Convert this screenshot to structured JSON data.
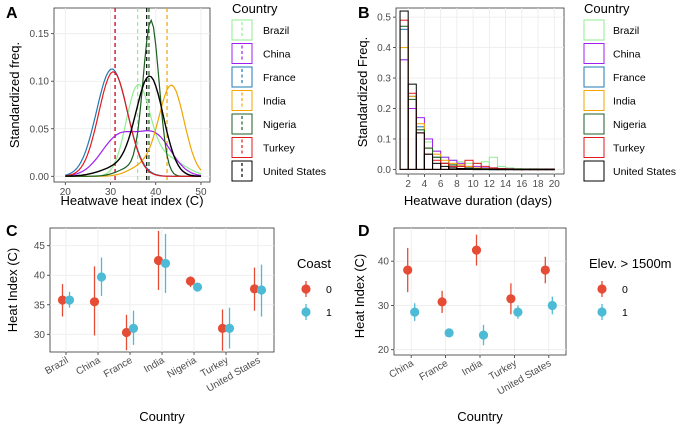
{
  "panel_labels": [
    "A",
    "B",
    "C",
    "D"
  ],
  "colors": {
    "Brazil": "#90ee90",
    "China": "#a020f0",
    "France": "#1f78b4",
    "India": "#f0a500",
    "Nigeria": "#1b5e20",
    "Turkey": "#e31a1c",
    "United States": "#000000",
    "group0": "#e64b35",
    "group1": "#4dbbd5"
  },
  "chart_data": [
    {
      "id": "A",
      "type": "line",
      "title": "",
      "xlabel": "Heatwave heat index (C)",
      "ylabel": "Standardized freq.",
      "xlim": [
        17.5,
        52
      ],
      "ylim": [
        -0.006,
        0.177
      ],
      "xticks": [
        20,
        30,
        40,
        50
      ],
      "yticks": [
        0,
        0.05,
        0.1,
        0.15
      ],
      "ytick_labels": [
        "0.00",
        "0.05",
        "0.10",
        "0.15"
      ],
      "legend_title": "Country",
      "x_grid_start": 20,
      "x_grid_end": 50,
      "x_grid_step": 0.5,
      "series": [
        {
          "name": "Brazil",
          "mean": 36,
          "dashed_line": 36,
          "components": [
            {
              "w": 0.09,
              "mu": 36,
              "sd": 2.6
            },
            {
              "w": 0.02,
              "mu": 42,
              "sd": 4
            }
          ]
        },
        {
          "name": "China",
          "mean": 31,
          "dashed_line": 31,
          "components": [
            {
              "w": 0.042,
              "mu": 32,
              "sd": 4
            },
            {
              "w": 0.04,
              "mu": 40,
              "sd": 3.6
            }
          ]
        },
        {
          "name": "France",
          "mean": 31,
          "dashed_line": 31,
          "components": [
            {
              "w": 0.113,
              "mu": 30.3,
              "sd": 3.4
            }
          ]
        },
        {
          "name": "India",
          "mean": 42.5,
          "dashed_line": 42.5,
          "components": [
            {
              "w": 0.095,
              "mu": 43.5,
              "sd": 2.8
            },
            {
              "w": 0.01,
              "mu": 37,
              "sd": 3
            }
          ]
        },
        {
          "name": "Nigeria",
          "mean": 38.5,
          "dashed_line": 38.5,
          "components": [
            {
              "w": 0.16,
              "mu": 39,
              "sd": 1.75
            },
            {
              "w": 0.01,
              "mu": 35,
              "sd": 3
            }
          ]
        },
        {
          "name": "Turkey",
          "mean": 31,
          "dashed_line": 31,
          "components": [
            {
              "w": 0.11,
              "mu": 30.6,
              "sd": 3.2
            }
          ]
        },
        {
          "name": "United States",
          "mean": 38,
          "dashed_line": 38,
          "components": [
            {
              "w": 0.103,
              "mu": 38.7,
              "sd": 3
            },
            {
              "w": 0.01,
              "mu": 32,
              "sd": 4
            }
          ]
        }
      ]
    },
    {
      "id": "B",
      "type": "bar",
      "title": "",
      "xlabel": "Heatwave duration (days)",
      "ylabel": "Standardized Freq.",
      "xlim": [
        0.5,
        21.2
      ],
      "ylim": [
        -0.015,
        0.53
      ],
      "xticks": [
        2,
        4,
        6,
        8,
        10,
        12,
        14,
        16,
        18,
        20
      ],
      "yticks": [
        0,
        0.1,
        0.2,
        0.3,
        0.4,
        0.5
      ],
      "ytick_labels": [
        "0.0",
        "0.1",
        "0.2",
        "0.3",
        "0.4",
        "0.5"
      ],
      "bin_starts": [
        1,
        2,
        3,
        4,
        5,
        6,
        7,
        8,
        9,
        10,
        11,
        12,
        13,
        14,
        15,
        16,
        17,
        18,
        19
      ],
      "bin_width": 1,
      "legend_title": "Country",
      "series": [
        {
          "name": "Brazil",
          "values": [
            0.36,
            0.2,
            0.13,
            0.09,
            0.06,
            0.04,
            0.03,
            0.025,
            0.02,
            0.02,
            0.025,
            0.04,
            0.01,
            0.005,
            0.003,
            0.002,
            0.002,
            0.001,
            0.001
          ]
        },
        {
          "name": "China",
          "values": [
            0.36,
            0.2,
            0.17,
            0.1,
            0.06,
            0.04,
            0.03,
            0.02,
            0.01,
            0.01,
            0.005,
            0.005,
            0.003,
            0.002,
            0.001,
            0.001,
            0.001,
            0.001,
            0.001
          ]
        },
        {
          "name": "France",
          "values": [
            0.46,
            0.24,
            0.14,
            0.07,
            0.04,
            0.02,
            0.01,
            0.01,
            0.005,
            0.003,
            0.002,
            0.001,
            0.001,
            0.001,
            0.001,
            0.001,
            0.001,
            0.001,
            0.001
          ]
        },
        {
          "name": "India",
          "values": [
            0.4,
            0.24,
            0.15,
            0.07,
            0.05,
            0.03,
            0.02,
            0.015,
            0.01,
            0.005,
            0.003,
            0.002,
            0.001,
            0.001,
            0.001,
            0.001,
            0.001,
            0.001,
            0.001
          ]
        },
        {
          "name": "Nigeria",
          "values": [
            0.47,
            0.23,
            0.13,
            0.07,
            0.04,
            0.02,
            0.015,
            0.01,
            0.005,
            0.003,
            0.002,
            0.001,
            0.001,
            0.001,
            0.001,
            0.001,
            0.001,
            0.001,
            0.001
          ]
        },
        {
          "name": "Turkey",
          "values": [
            0.49,
            0.25,
            0.12,
            0.05,
            0.03,
            0.02,
            0.01,
            0.01,
            0.03,
            0.02,
            0.01,
            0.005,
            0.003,
            0.002,
            0.001,
            0.001,
            0.001,
            0.001,
            0.001
          ]
        },
        {
          "name": "United States",
          "values": [
            0.52,
            0.28,
            0.12,
            0.05,
            0.02,
            0.01,
            0.005,
            0.003,
            0.002,
            0.001,
            0.001,
            0.001,
            0.001,
            0.001,
            0.001,
            0.001,
            0.001,
            0.001,
            0.001
          ]
        }
      ]
    },
    {
      "id": "C",
      "type": "scatter",
      "title": "",
      "xlabel": "Country",
      "ylabel": "Heat Index (C)",
      "ylim": [
        27,
        48
      ],
      "yticks": [
        30,
        35,
        40,
        45
      ],
      "categories": [
        "Brazil",
        "China",
        "France",
        "India",
        "Nigeria",
        "Turkey",
        "United States"
      ],
      "legend_title": "Coast",
      "series": [
        {
          "name": "0",
          "values": [
            35.8,
            35.5,
            30.3,
            42.5,
            39,
            31,
            37.7
          ],
          "lower": [
            33,
            29.8,
            27.3,
            37.5,
            38,
            27.2,
            34
          ],
          "upper": [
            38.5,
            41.5,
            33.3,
            47.5,
            39.8,
            34.2,
            41.3
          ]
        },
        {
          "name": "1",
          "values": [
            35.8,
            39.7,
            31,
            42,
            38,
            31,
            37.5
          ],
          "lower": [
            34.5,
            36.5,
            28.2,
            37,
            37.5,
            27.6,
            33
          ],
          "upper": [
            37.2,
            43,
            34,
            47,
            38.5,
            34.5,
            41.8
          ]
        }
      ]
    },
    {
      "id": "D",
      "type": "scatter",
      "title": "",
      "xlabel": "Country",
      "ylabel": "Heat Index (C)",
      "ylim": [
        18.8,
        47.5
      ],
      "yticks": [
        20,
        30,
        40
      ],
      "categories": [
        "China",
        "France",
        "India",
        "Turkey",
        "United States"
      ],
      "legend_title": "Elev. > 1500m",
      "series": [
        {
          "name": "0",
          "values": [
            38,
            30.8,
            42.5,
            31.5,
            38
          ],
          "lower": [
            33,
            28.3,
            39,
            28,
            35
          ],
          "upper": [
            43,
            33.3,
            46,
            35,
            41
          ]
        },
        {
          "name": "1",
          "values": [
            28.5,
            23.8,
            23.3,
            28.5,
            30
          ],
          "lower": [
            26.5,
            23.2,
            21,
            27,
            28
          ],
          "upper": [
            30.5,
            24.2,
            25.6,
            30,
            32
          ]
        }
      ]
    }
  ]
}
